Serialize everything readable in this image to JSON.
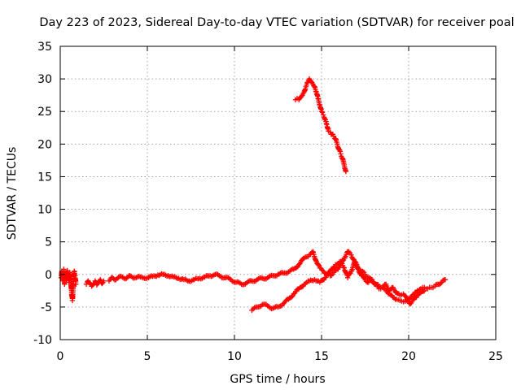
{
  "chart_data": {
    "type": "scatter",
    "title": "Day 223 of 2023, Sidereal Day-to-day VTEC variation (SDTVAR) for receiver poal",
    "xlabel": "GPS time / hours",
    "ylabel": "SDTVAR / TECUs",
    "xlim": [
      0,
      25
    ],
    "ylim": [
      -10,
      35
    ],
    "xticks": [
      0,
      5,
      10,
      15,
      20,
      25
    ],
    "yticks": [
      -10,
      -5,
      0,
      5,
      10,
      15,
      20,
      25,
      30,
      35
    ],
    "grid": true,
    "marker": "+",
    "color": "#ff0000",
    "series": [
      {
        "name": "SDTVAR",
        "segments": [
          [
            [
              0.05,
              -0.5
            ],
            [
              0.1,
              0.5
            ],
            [
              0.15,
              -1.0
            ],
            [
              0.2,
              0.8
            ],
            [
              0.25,
              -1.5
            ],
            [
              0.3,
              0.2
            ],
            [
              0.35,
              -0.8
            ],
            [
              0.4,
              0.6
            ],
            [
              0.45,
              -0.3
            ],
            [
              0.5,
              -1.2
            ],
            [
              0.55,
              0.3
            ],
            [
              0.6,
              -0.6
            ],
            [
              0.65,
              -2.8
            ],
            [
              0.7,
              -4.0
            ],
            [
              0.75,
              -1.5
            ],
            [
              0.8,
              0.5
            ],
            [
              0.85,
              -0.2
            ],
            [
              0.9,
              -1.5
            ]
          ],
          [
            [
              1.5,
              -1.5
            ],
            [
              1.6,
              -1.0
            ],
            [
              1.7,
              -1.3
            ],
            [
              1.8,
              -1.8
            ],
            [
              2.0,
              -1.0
            ],
            [
              2.1,
              -1.6
            ],
            [
              2.2,
              -1.2
            ],
            [
              2.3,
              -0.8
            ],
            [
              2.4,
              -1.4
            ],
            [
              2.5,
              -1.0
            ]
          ],
          [
            [
              2.8,
              -1.0
            ],
            [
              3.0,
              -0.5
            ],
            [
              3.2,
              -0.8
            ],
            [
              3.5,
              -0.3
            ],
            [
              3.8,
              -0.6
            ],
            [
              4.0,
              -0.2
            ],
            [
              4.3,
              -0.5
            ],
            [
              4.6,
              -0.4
            ],
            [
              5.0,
              -0.5
            ],
            [
              5.3,
              -0.3
            ],
            [
              5.6,
              -0.1
            ],
            [
              5.9,
              0.0
            ],
            [
              6.2,
              -0.2
            ],
            [
              6.5,
              -0.4
            ],
            [
              6.8,
              -0.6
            ],
            [
              7.1,
              -0.8
            ],
            [
              7.4,
              -1.0
            ],
            [
              7.7,
              -0.8
            ],
            [
              8.0,
              -0.6
            ],
            [
              8.3,
              -0.4
            ],
            [
              8.6,
              -0.2
            ],
            [
              8.9,
              0.0
            ],
            [
              9.2,
              -0.3
            ],
            [
              9.5,
              -0.5
            ],
            [
              9.8,
              -0.8
            ],
            [
              10.1,
              -1.2
            ],
            [
              10.4,
              -1.5
            ],
            [
              10.7,
              -1.3
            ],
            [
              11.0,
              -1.0
            ],
            [
              11.3,
              -0.8
            ],
            [
              11.6,
              -0.6
            ],
            [
              11.9,
              -0.5
            ],
            [
              12.2,
              -0.2
            ],
            [
              12.5,
              0.0
            ],
            [
              12.8,
              0.2
            ],
            [
              13.1,
              0.4
            ],
            [
              13.4,
              0.8
            ],
            [
              13.7,
              1.5
            ],
            [
              14.0,
              2.5
            ],
            [
              14.3,
              3.0
            ],
            [
              14.5,
              3.5
            ],
            [
              14.7,
              2.0
            ],
            [
              14.9,
              1.0
            ],
            [
              15.1,
              0.5
            ],
            [
              15.3,
              0.0
            ],
            [
              15.5,
              -0.2
            ],
            [
              15.7,
              0.3
            ],
            [
              15.9,
              0.8
            ],
            [
              16.1,
              1.5
            ],
            [
              16.3,
              2.5
            ],
            [
              16.5,
              3.5
            ],
            [
              16.7,
              3.0
            ],
            [
              16.9,
              2.0
            ],
            [
              17.1,
              1.0
            ],
            [
              17.3,
              0.5
            ],
            [
              17.5,
              0.0
            ],
            [
              17.7,
              -0.5
            ],
            [
              17.9,
              -1.0
            ],
            [
              18.1,
              -1.5
            ],
            [
              18.3,
              -1.8
            ],
            [
              18.5,
              -2.0
            ],
            [
              18.7,
              -2.5
            ],
            [
              18.9,
              -3.0
            ],
            [
              19.1,
              -3.5
            ],
            [
              19.3,
              -3.8
            ],
            [
              19.5,
              -4.0
            ],
            [
              19.7,
              -4.2
            ],
            [
              19.9,
              -4.0
            ],
            [
              20.1,
              -3.5
            ],
            [
              20.3,
              -3.0
            ],
            [
              20.5,
              -2.5
            ],
            [
              20.7,
              -2.2
            ],
            [
              20.9,
              -2.0
            ],
            [
              21.1,
              -2.2
            ],
            [
              21.3,
              -2.0
            ],
            [
              21.5,
              -1.8
            ],
            [
              21.7,
              -1.5
            ],
            [
              21.9,
              -1.2
            ],
            [
              22.1,
              -0.8
            ]
          ],
          [
            [
              11.0,
              -5.5
            ],
            [
              11.3,
              -5.0
            ],
            [
              11.6,
              -4.6
            ],
            [
              11.9,
              -4.8
            ],
            [
              12.2,
              -5.2
            ],
            [
              12.5,
              -5.0
            ],
            [
              12.8,
              -4.5
            ],
            [
              13.1,
              -3.8
            ],
            [
              13.4,
              -3.0
            ],
            [
              13.7,
              -2.2
            ],
            [
              14.0,
              -1.5
            ],
            [
              14.3,
              -1.0
            ],
            [
              14.6,
              -0.8
            ],
            [
              14.9,
              -1.2
            ],
            [
              15.2,
              -0.5
            ],
            [
              15.5,
              0.5
            ],
            [
              15.8,
              1.5
            ],
            [
              16.1,
              2.0
            ],
            [
              16.3,
              1.0
            ],
            [
              16.5,
              -0.5
            ],
            [
              16.7,
              0.5
            ],
            [
              16.9,
              1.8
            ],
            [
              17.1,
              0.8
            ],
            [
              17.3,
              -0.2
            ],
            [
              17.5,
              -0.8
            ],
            [
              17.7,
              -1.2
            ],
            [
              17.9,
              -0.8
            ],
            [
              18.1,
              -1.5
            ],
            [
              18.3,
              -2.2
            ],
            [
              18.5,
              -2.0
            ],
            [
              18.7,
              -1.5
            ],
            [
              18.9,
              -2.5
            ],
            [
              19.1,
              -2.0
            ],
            [
              19.3,
              -2.8
            ],
            [
              19.5,
              -3.2
            ],
            [
              19.7,
              -3.0
            ],
            [
              19.9,
              -3.8
            ],
            [
              20.1,
              -4.5
            ],
            [
              20.3,
              -3.8
            ],
            [
              20.5,
              -3.2
            ],
            [
              20.7,
              -2.8
            ],
            [
              20.9,
              -2.5
            ]
          ],
          [
            [
              13.5,
              26.8
            ],
            [
              13.6,
              27.0
            ],
            [
              13.7,
              26.8
            ],
            [
              13.8,
              27.2
            ],
            [
              13.9,
              27.5
            ],
            [
              14.0,
              28.0
            ],
            [
              14.1,
              28.8
            ],
            [
              14.2,
              29.5
            ],
            [
              14.3,
              30.0
            ],
            [
              14.4,
              29.6
            ],
            [
              14.5,
              29.2
            ],
            [
              14.6,
              28.8
            ],
            [
              14.7,
              28.0
            ],
            [
              14.8,
              27.0
            ],
            [
              14.9,
              26.0
            ],
            [
              15.0,
              25.0
            ],
            [
              15.1,
              24.5
            ],
            [
              15.2,
              23.8
            ],
            [
              15.3,
              23.0
            ],
            [
              15.4,
              22.0
            ],
            [
              15.5,
              21.8
            ],
            [
              15.6,
              21.5
            ],
            [
              15.7,
              21.2
            ],
            [
              15.8,
              20.8
            ],
            [
              15.9,
              20.0
            ],
            [
              16.0,
              19.2
            ],
            [
              16.1,
              18.5
            ],
            [
              16.2,
              17.8
            ],
            [
              16.3,
              16.8
            ],
            [
              16.4,
              15.8
            ]
          ]
        ]
      }
    ]
  }
}
